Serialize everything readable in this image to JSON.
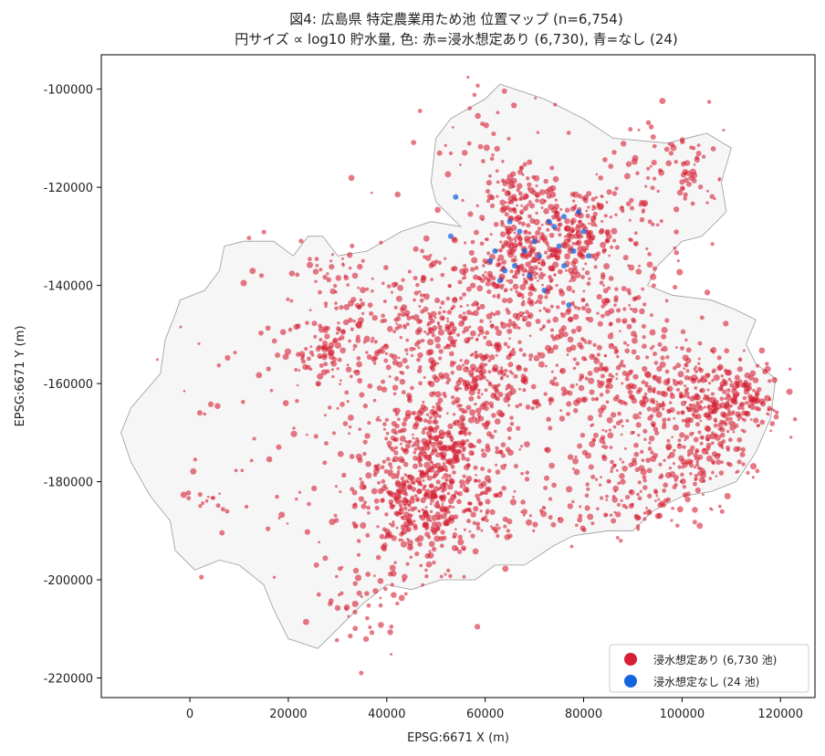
{
  "colors": {
    "inundation": "#d62033",
    "no_inundation": "#1565e0",
    "land_fill": "#f6f6f6",
    "land_edge": "#9a9a9a"
  },
  "chart_data": {
    "type": "scatter",
    "title": "図4: 広島県 特定農業用ため池 位置マップ (n=6,754)",
    "subtitle": "円サイズ ∝ log10 貯水量, 色: 赤=浸水想定あり (6,730), 青=なし (24)",
    "xlabel": "EPSG:6671 X (m)",
    "ylabel": "EPSG:6671 Y (m)",
    "xlim": [
      -18000,
      127000
    ],
    "ylim": [
      -224000,
      -93000
    ],
    "xticks": [
      {
        "value": 0,
        "label": "0"
      },
      {
        "value": 20000,
        "label": "20000"
      },
      {
        "value": 40000,
        "label": "40000"
      },
      {
        "value": 60000,
        "label": "60000"
      },
      {
        "value": 80000,
        "label": "80000"
      },
      {
        "value": 100000,
        "label": "100000"
      },
      {
        "value": 120000,
        "label": "120000"
      }
    ],
    "yticks": [
      {
        "value": -100000,
        "label": "-100000"
      },
      {
        "value": -120000,
        "label": "-120000"
      },
      {
        "value": -140000,
        "label": "-140000"
      },
      {
        "value": -160000,
        "label": "-160000"
      },
      {
        "value": -180000,
        "label": "-180000"
      },
      {
        "value": -200000,
        "label": "-200000"
      },
      {
        "value": -220000,
        "label": "-220000"
      }
    ],
    "grid": false,
    "legend": {
      "placement": "bottom-right",
      "entries": [
        {
          "label": "浸水想定あり (6,730 池)",
          "series": "inundation"
        },
        {
          "label": "浸水想定なし (24 池)",
          "series": "no_inundation"
        }
      ]
    },
    "basemap_outline": [
      [
        -12000,
        -165000
      ],
      [
        -6000,
        -158000
      ],
      [
        -5000,
        -151000
      ],
      [
        -3000,
        -146000
      ],
      [
        -2000,
        -143000
      ],
      [
        3000,
        -141000
      ],
      [
        6000,
        -137000
      ],
      [
        7000,
        -132000
      ],
      [
        11000,
        -131000
      ],
      [
        17000,
        -131000
      ],
      [
        21000,
        -134000
      ],
      [
        24000,
        -130000
      ],
      [
        27000,
        -130000
      ],
      [
        30000,
        -134000
      ],
      [
        36000,
        -133000
      ],
      [
        43000,
        -129000
      ],
      [
        49000,
        -127000
      ],
      [
        55000,
        -128000
      ],
      [
        50000,
        -123000
      ],
      [
        49000,
        -119000
      ],
      [
        50000,
        -110000
      ],
      [
        53000,
        -106000
      ],
      [
        60000,
        -102000
      ],
      [
        63000,
        -99000
      ],
      [
        72000,
        -102000
      ],
      [
        80000,
        -106000
      ],
      [
        86000,
        -110000
      ],
      [
        97000,
        -111000
      ],
      [
        105000,
        -109000
      ],
      [
        110000,
        -112000
      ],
      [
        108000,
        -119000
      ],
      [
        109000,
        -125000
      ],
      [
        104000,
        -130000
      ],
      [
        100000,
        -131000
      ],
      [
        95000,
        -136000
      ],
      [
        93000,
        -140000
      ],
      [
        98000,
        -142000
      ],
      [
        106000,
        -143000
      ],
      [
        111000,
        -145000
      ],
      [
        115000,
        -147000
      ],
      [
        113000,
        -152000
      ],
      [
        115000,
        -156000
      ],
      [
        119000,
        -159000
      ],
      [
        118000,
        -167000
      ],
      [
        115000,
        -174000
      ],
      [
        111000,
        -180000
      ],
      [
        106000,
        -182000
      ],
      [
        100000,
        -183000
      ],
      [
        94000,
        -186000
      ],
      [
        90000,
        -190000
      ],
      [
        85000,
        -190000
      ],
      [
        78000,
        -191000
      ],
      [
        74000,
        -193000
      ],
      [
        68000,
        -197000
      ],
      [
        62000,
        -197000
      ],
      [
        58000,
        -200000
      ],
      [
        51000,
        -200000
      ],
      [
        45000,
        -202000
      ],
      [
        40000,
        -201000
      ],
      [
        35000,
        -205000
      ],
      [
        30000,
        -210000
      ],
      [
        26000,
        -214000
      ],
      [
        20000,
        -212000
      ],
      [
        17000,
        -206000
      ],
      [
        15000,
        -201000
      ],
      [
        10000,
        -197000
      ],
      [
        6000,
        -196000
      ],
      [
        1000,
        -198000
      ],
      [
        -3000,
        -194000
      ],
      [
        -4000,
        -188000
      ],
      [
        -8000,
        -183000
      ],
      [
        -12000,
        -176000
      ],
      [
        -14000,
        -170000
      ]
    ],
    "clusters": [
      {
        "center": [
          50000,
          -180000
        ],
        "spread": [
          7000,
          8000
        ],
        "count": 280
      },
      {
        "center": [
          44000,
          -186000
        ],
        "spread": [
          5000,
          5000
        ],
        "count": 150
      },
      {
        "center": [
          48000,
          -172000
        ],
        "spread": [
          6000,
          5000
        ],
        "count": 150
      },
      {
        "center": [
          60000,
          -160000
        ],
        "spread": [
          6000,
          7000
        ],
        "count": 200
      },
      {
        "center": [
          68000,
          -135000
        ],
        "spread": [
          6000,
          5000
        ],
        "count": 220
      },
      {
        "center": [
          79000,
          -128000
        ],
        "spread": [
          4000,
          4000
        ],
        "count": 150
      },
      {
        "center": [
          66000,
          -122000
        ],
        "spread": [
          3000,
          3000
        ],
        "count": 80
      },
      {
        "center": [
          103000,
          -162000
        ],
        "spread": [
          6000,
          5000
        ],
        "count": 200
      },
      {
        "center": [
          112000,
          -164000
        ],
        "spread": [
          4000,
          4000
        ],
        "count": 120
      },
      {
        "center": [
          103000,
          -175000
        ],
        "spread": [
          5000,
          5000
        ],
        "count": 160
      },
      {
        "center": [
          86000,
          -163000
        ],
        "spread": [
          7000,
          8000
        ],
        "count": 160
      },
      {
        "center": [
          47000,
          -150000
        ],
        "spread": [
          6000,
          8000
        ],
        "count": 120
      },
      {
        "center": [
          32000,
          -148000
        ],
        "spread": [
          5000,
          5000
        ],
        "count": 60
      },
      {
        "center": [
          26000,
          -154000
        ],
        "spread": [
          3000,
          3000
        ],
        "count": 50
      },
      {
        "center": [
          73000,
          -150000
        ],
        "spread": [
          10000,
          10000
        ],
        "count": 160
      },
      {
        "center": [
          98000,
          -116000
        ],
        "spread": [
          6000,
          5000
        ],
        "count": 70
      },
      {
        "center": [
          88000,
          -143000
        ],
        "spread": [
          8000,
          6000
        ],
        "count": 100
      },
      {
        "center": [
          62000,
          -186000
        ],
        "spread": [
          8000,
          4000
        ],
        "count": 80
      },
      {
        "center": [
          40000,
          -160000
        ],
        "spread": [
          10000,
          15000
        ],
        "count": 120
      },
      {
        "center": [
          37000,
          -205000
        ],
        "spread": [
          5000,
          5000
        ],
        "count": 40
      },
      {
        "center": [
          93000,
          -185000
        ],
        "spread": [
          5000,
          3000
        ],
        "count": 40
      },
      {
        "center": [
          85000,
          -180000
        ],
        "spread": [
          6000,
          5000
        ],
        "count": 60
      },
      {
        "center": [
          28000,
          -190000
        ],
        "spread": [
          12000,
          12000
        ],
        "count": 50
      },
      {
        "center": [
          18000,
          -160000
        ],
        "spread": [
          12000,
          12000
        ],
        "count": 50
      },
      {
        "center": [
          60000,
          -110000
        ],
        "spread": [
          8000,
          8000
        ],
        "count": 40
      },
      {
        "center": [
          30000,
          -137000
        ],
        "spread": [
          4000,
          3000
        ],
        "count": 25
      },
      {
        "center": [
          58000,
          -142000
        ],
        "spread": [
          8000,
          6000
        ],
        "count": 100
      },
      {
        "center": [
          90000,
          -125000
        ],
        "spread": [
          6000,
          6000
        ],
        "count": 40
      },
      {
        "center": [
          2000,
          -183000
        ],
        "spread": [
          2000,
          1500
        ],
        "count": 12
      }
    ],
    "no_inundation_points": [
      [
        54000,
        -122000
      ],
      [
        53000,
        -130000
      ],
      [
        64000,
        -137000
      ],
      [
        71000,
        -134000
      ],
      [
        77000,
        -144000
      ],
      [
        75000,
        -132000
      ],
      [
        80000,
        -129000
      ],
      [
        73000,
        -127000
      ],
      [
        62000,
        -133000
      ],
      [
        78000,
        -133000
      ],
      [
        69000,
        -138000
      ],
      [
        67000,
        -129000
      ],
      [
        76000,
        -126000
      ],
      [
        66000,
        -136000
      ],
      [
        74000,
        -128000
      ],
      [
        70000,
        -131000
      ],
      [
        79000,
        -125000
      ],
      [
        81000,
        -134000
      ],
      [
        63000,
        -139000
      ],
      [
        72000,
        -141000
      ],
      [
        76000,
        -136000
      ],
      [
        68000,
        -133000
      ],
      [
        65000,
        -127000
      ],
      [
        61000,
        -135000
      ]
    ]
  }
}
